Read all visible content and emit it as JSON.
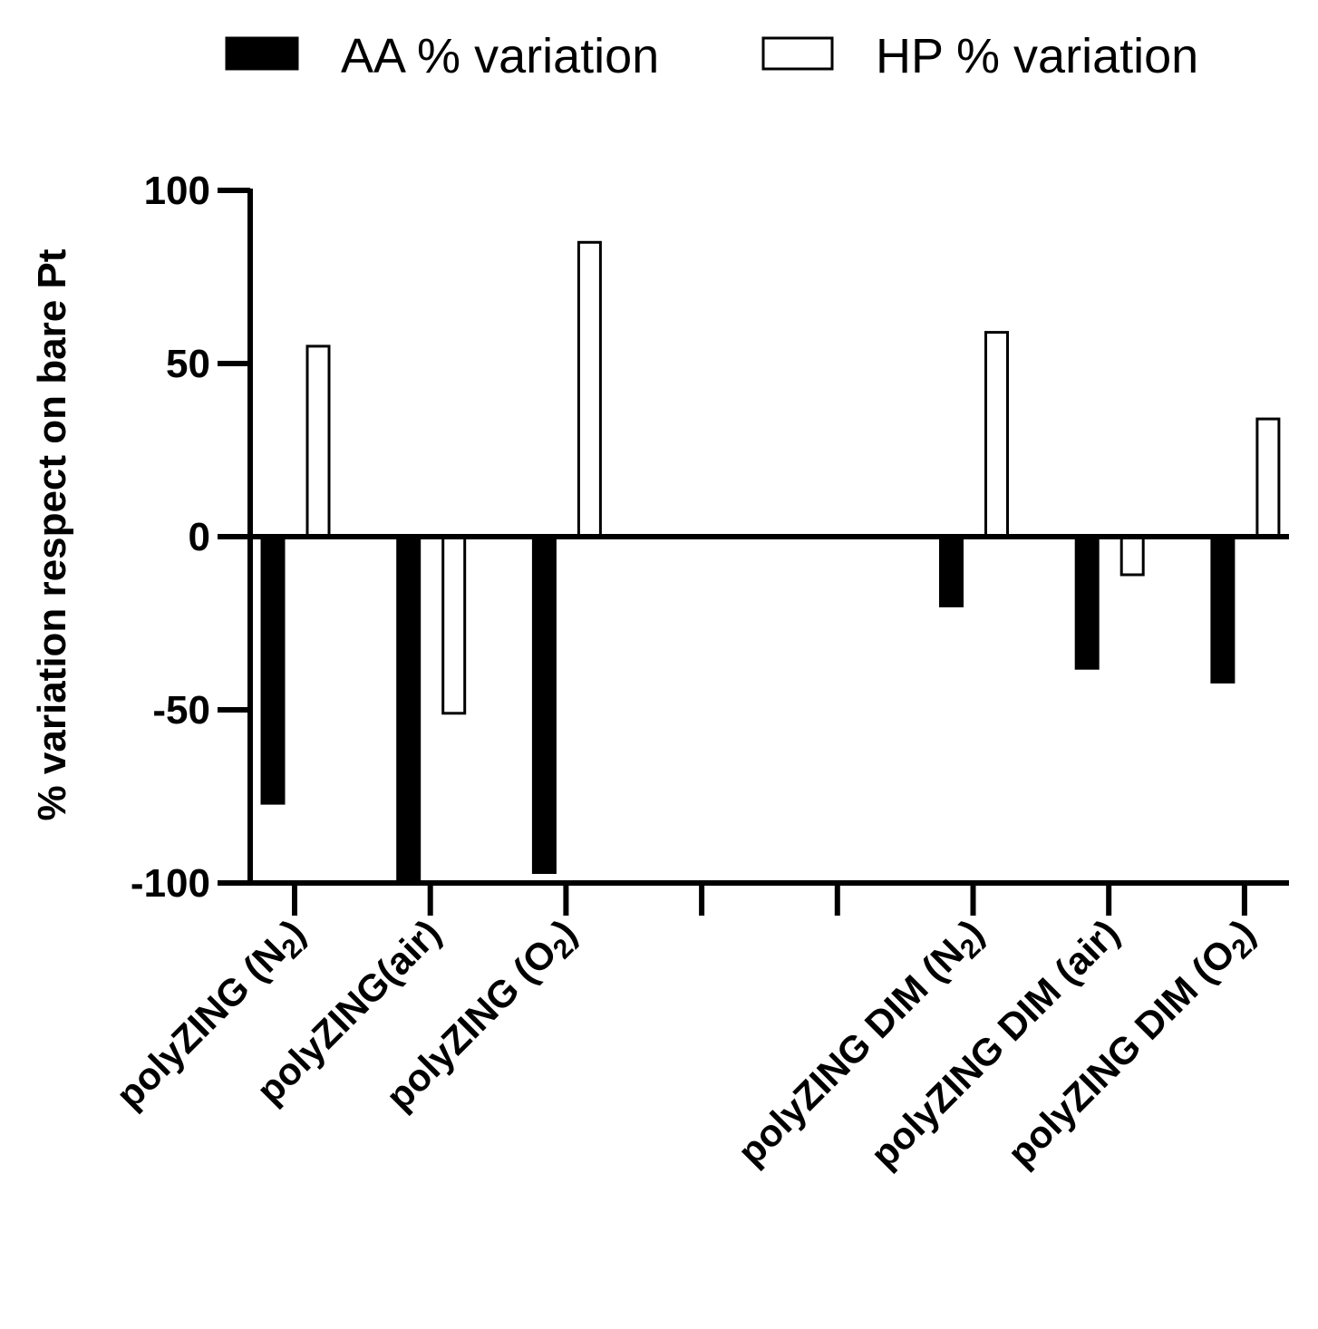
{
  "chart_data": {
    "type": "bar",
    "title": "",
    "xlabel": "",
    "ylabel": "% variation respect on bare Pt",
    "ylim": [
      -100,
      100
    ],
    "yticks": [
      100,
      50,
      0,
      -50,
      -100
    ],
    "ytick_labels": [
      "100",
      "50",
      "0",
      "-50",
      "-100"
    ],
    "legend_position": "top",
    "categories": [
      "polyZING (N2)",
      "polyZING(air)",
      "polyZING (O2)",
      "",
      "",
      "polyZING DIM (N2)",
      "polyZING DIM (air)",
      "polyZING DIM (O2)"
    ],
    "category_labels": [
      {
        "base": "polyZING (N",
        "sub": "2",
        "tail": ")"
      },
      {
        "base": "polyZING(air)",
        "sub": "",
        "tail": ""
      },
      {
        "base": "polyZING (O",
        "sub": "2",
        "tail": ")"
      },
      {
        "base": "",
        "sub": "",
        "tail": ""
      },
      {
        "base": "",
        "sub": "",
        "tail": ""
      },
      {
        "base": "polyZING DIM (N",
        "sub": "2",
        "tail": ")"
      },
      {
        "base": "polyZING DIM (air)",
        "sub": "",
        "tail": ""
      },
      {
        "base": "polyZING DIM (O",
        "sub": "2",
        "tail": ")"
      }
    ],
    "series": [
      {
        "name": "AA % variation",
        "fill": "#000000",
        "values": [
          -77,
          -100,
          -97,
          null,
          null,
          -20,
          -38,
          -42
        ]
      },
      {
        "name": "HP % variation",
        "fill": "#ffffff",
        "values": [
          55,
          -51,
          85,
          null,
          null,
          59,
          -11,
          34
        ]
      }
    ]
  }
}
